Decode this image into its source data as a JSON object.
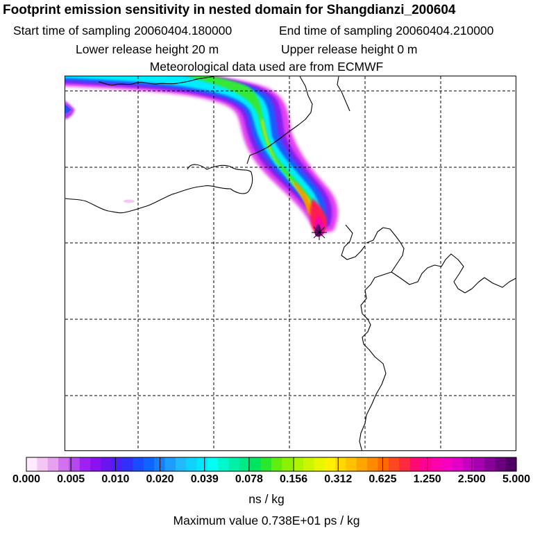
{
  "header": {
    "title": "Footprint emission sensitivity in nested domain for Shangdianzi_200604",
    "start_time": "Start time of sampling 20060404.180000",
    "end_time": "End time of sampling 20060404.210000",
    "lower_height": "Lower release height   20 m",
    "upper_height": "Upper release height    0 m",
    "met_source": "Meteorological data used are from ECMWF"
  },
  "map": {
    "grid": "dashed",
    "site_marker": "receptor-star-icon",
    "plume_direction": "northwest"
  },
  "colorbar": {
    "ticks": [
      "0.000",
      "0.005",
      "0.010",
      "0.020",
      "0.039",
      "0.078",
      "0.156",
      "0.312",
      "0.625",
      "1.250",
      "2.500",
      "5.000"
    ],
    "colors": [
      "#ffeaff",
      "#f4c6f4",
      "#e7a2ef",
      "#d072ee",
      "#b448ee",
      "#9e21f2",
      "#8a12f0",
      "#6a14f0",
      "#4a20f6",
      "#3030f8",
      "#1a4cff",
      "#0f63ff",
      "#1480ff",
      "#1e9dff",
      "#20bbff",
      "#10d2ff",
      "#00e8ff",
      "#00fff2",
      "#00f7cb",
      "#00f0a7",
      "#00eb84",
      "#00e560",
      "#28e72c",
      "#5fee0f",
      "#8af200",
      "#adf500",
      "#cbf600",
      "#e6f700",
      "#fff200",
      "#ffd800",
      "#ffc100",
      "#ffa500",
      "#ff8a00",
      "#ff6a00",
      "#ff4722",
      "#ff2a40",
      "#ff0a72",
      "#ff0092",
      "#ff00ad",
      "#f500c0",
      "#e000c6",
      "#c500c0",
      "#a600b0",
      "#870098",
      "#6a007d",
      "#4e0062"
    ],
    "units": "ns / kg",
    "max_value": "Maximum value  0.738E+01 ps / kg"
  }
}
